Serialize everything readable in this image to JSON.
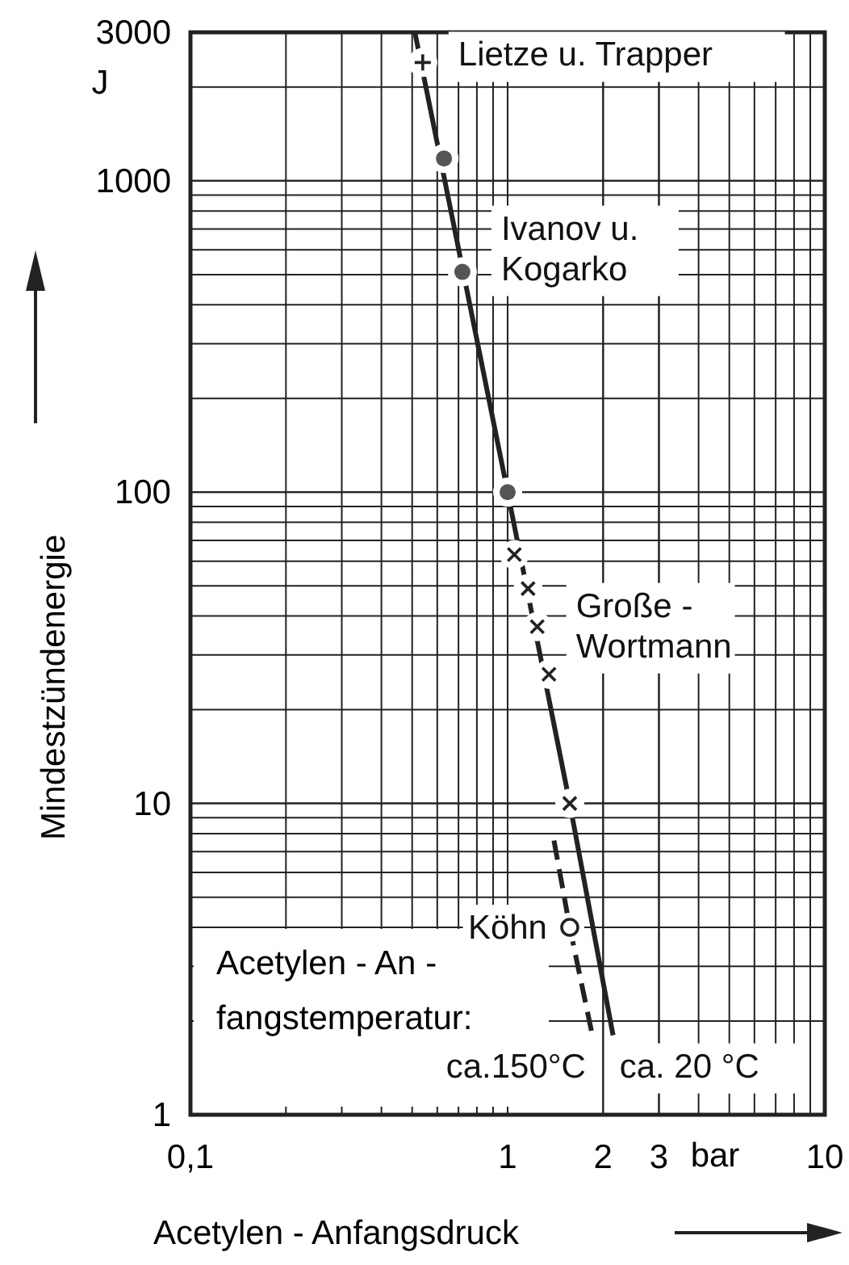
{
  "chart_data": {
    "type": "scatter",
    "xlabel": "Acetylen - Anfangsdruck",
    "ylabel": "Mindestzündenergie",
    "log": "xy",
    "xlim": [
      0.1,
      10
    ],
    "ylim": [
      1,
      3000
    ],
    "xticks": [
      {
        "value": 0.1,
        "label": "0,1"
      },
      1,
      2,
      3,
      10
    ],
    "yticks": [
      1,
      10,
      100,
      1000,
      3000
    ],
    "grid": true,
    "series": [
      {
        "name": "ca. 20 °C",
        "type": "line",
        "line_style": "solid",
        "color": "#222222",
        "x": [
          0.51,
          1.0,
          1.57,
          2.15
        ],
        "values": [
          3000,
          100,
          10,
          1.8
        ]
      },
      {
        "name": "ca.150°C",
        "type": "line",
        "line_style": "dashed",
        "color": "#222222",
        "x": [
          1.4,
          1.57,
          1.85
        ],
        "values": [
          7.6,
          4.0,
          1.8
        ]
      },
      {
        "name": "Lietze u. Trapper",
        "marker": "plus",
        "color": "#222222",
        "x": [
          0.54
        ],
        "values": [
          2400
        ]
      },
      {
        "name": "Ivanov u. Kogarko",
        "marker": "circle",
        "color": "#555555",
        "x": [
          0.63,
          0.72,
          1.0
        ],
        "values": [
          1180,
          510,
          100
        ]
      },
      {
        "name": "Große - Wortmann",
        "marker": "cross",
        "color": "#222222",
        "x": [
          1.05,
          1.16,
          1.24,
          1.35,
          1.57
        ],
        "values": [
          63,
          49,
          37,
          26,
          10
        ]
      },
      {
        "name": "Köhn",
        "marker": "open circle",
        "color": "#222222",
        "x": [
          1.57
        ],
        "values": [
          4.0
        ]
      }
    ],
    "annotations": [
      "J",
      "bar",
      "Acetylen - An -",
      "fangstemperatur:"
    ]
  }
}
